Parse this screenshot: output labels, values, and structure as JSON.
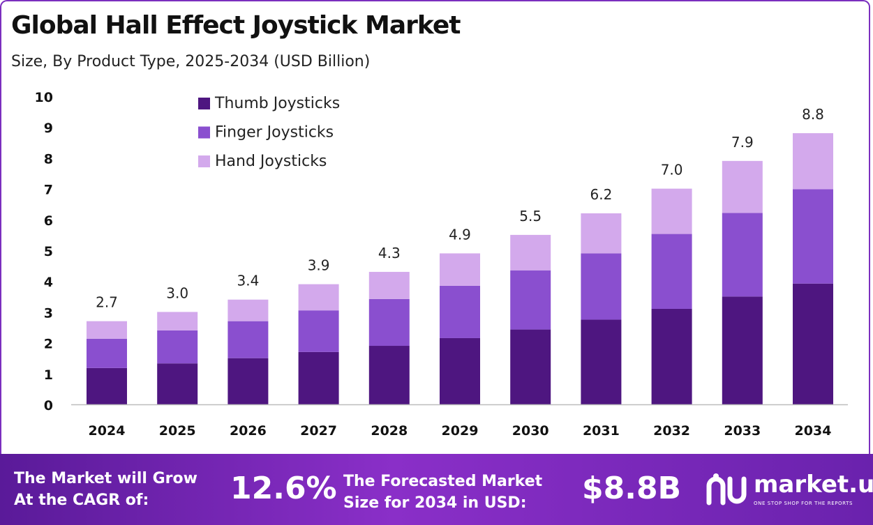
{
  "title": "Global Hall Effect Joystick Market",
  "subtitle": "Size, By Product Type, 2025-2034 (USD Billion)",
  "colors": {
    "thumb": "#4e1680",
    "finger": "#8a4fcf",
    "hand": "#d3a9ec",
    "accent": "#7b2fbe"
  },
  "chart_data": {
    "type": "bar",
    "stacked": true,
    "categories": [
      "2024",
      "2025",
      "2026",
      "2027",
      "2028",
      "2029",
      "2030",
      "2031",
      "2032",
      "2033",
      "2034"
    ],
    "series": [
      {
        "name": "Thumb Joysticks",
        "values": [
          1.18,
          1.33,
          1.5,
          1.7,
          1.9,
          2.15,
          2.43,
          2.75,
          3.1,
          3.5,
          3.92
        ]
      },
      {
        "name": "Finger Joysticks",
        "values": [
          0.95,
          1.07,
          1.2,
          1.35,
          1.52,
          1.7,
          1.92,
          2.15,
          2.43,
          2.71,
          3.06
        ]
      },
      {
        "name": "Hand Joysticks",
        "values": [
          0.57,
          0.6,
          0.7,
          0.85,
          0.88,
          1.05,
          1.15,
          1.3,
          1.47,
          1.69,
          1.82
        ]
      }
    ],
    "totals": [
      "2.7",
      "3.0",
      "3.4",
      "3.9",
      "4.3",
      "4.9",
      "5.5",
      "6.2",
      "7.0",
      "7.9",
      "8.8"
    ],
    "y_ticks": [
      "0",
      "1",
      "2",
      "3",
      "4",
      "5",
      "6",
      "7",
      "8",
      "9",
      "10"
    ],
    "ylim": [
      0,
      10
    ],
    "grid": false,
    "legend_position": "top-left"
  },
  "footer": {
    "cagr_line1": "The Market will Grow",
    "cagr_line2": "At the CAGR of:",
    "cagr_value": "12.6%",
    "forecast_line1": "The Forecasted Market",
    "forecast_line2": "Size for 2034 in USD:",
    "forecast_value": "$8.8B",
    "logo_text": "market.us",
    "logo_tagline": "ONE STOP SHOP FOR THE REPORTS"
  }
}
